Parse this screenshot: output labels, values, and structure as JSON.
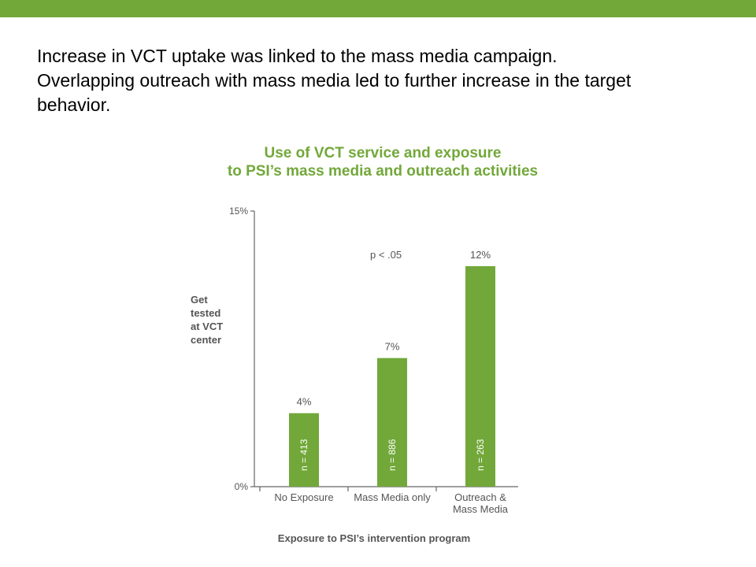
{
  "slide": {
    "lines": [
      "Increase in VCT uptake was linked to the mass media campaign.",
      "Overlapping outreach with mass media led to further increase in the target",
      "behavior."
    ]
  },
  "colors": {
    "accent": "#72a83a",
    "bar": "#72a83a",
    "axis_text": "#555555"
  },
  "chart_data": {
    "type": "bar",
    "title": "Use of VCT service and exposure\nto PSI’s mass media and outreach activities",
    "title_lines": [
      "Use of VCT service and exposure",
      "to PSI’s mass media and outreach activities"
    ],
    "ylabel": "Get tested at VCT center",
    "ylabel_lines": [
      "Get",
      "tested",
      "at VCT",
      "center"
    ],
    "xlabel": "Exposure to PSI’s intervention program",
    "ylim": [
      0,
      15
    ],
    "yticks": [
      {
        "value": 0,
        "label": "0%"
      },
      {
        "value": 15,
        "label": "15%"
      }
    ],
    "categories": [
      "No Exposure",
      "Mass Media only",
      "Outreach &\nMass Media"
    ],
    "category_lines": [
      [
        "No Exposure"
      ],
      [
        "Mass Media only"
      ],
      [
        "Outreach &",
        "Mass Media"
      ]
    ],
    "values": [
      4,
      7,
      12
    ],
    "value_labels": [
      "4%",
      "7%",
      "12%"
    ],
    "sample_labels": [
      "n =  413",
      "n = 886",
      "n = 263"
    ],
    "annotation": "p < .05",
    "grid": false,
    "legend": "none"
  }
}
